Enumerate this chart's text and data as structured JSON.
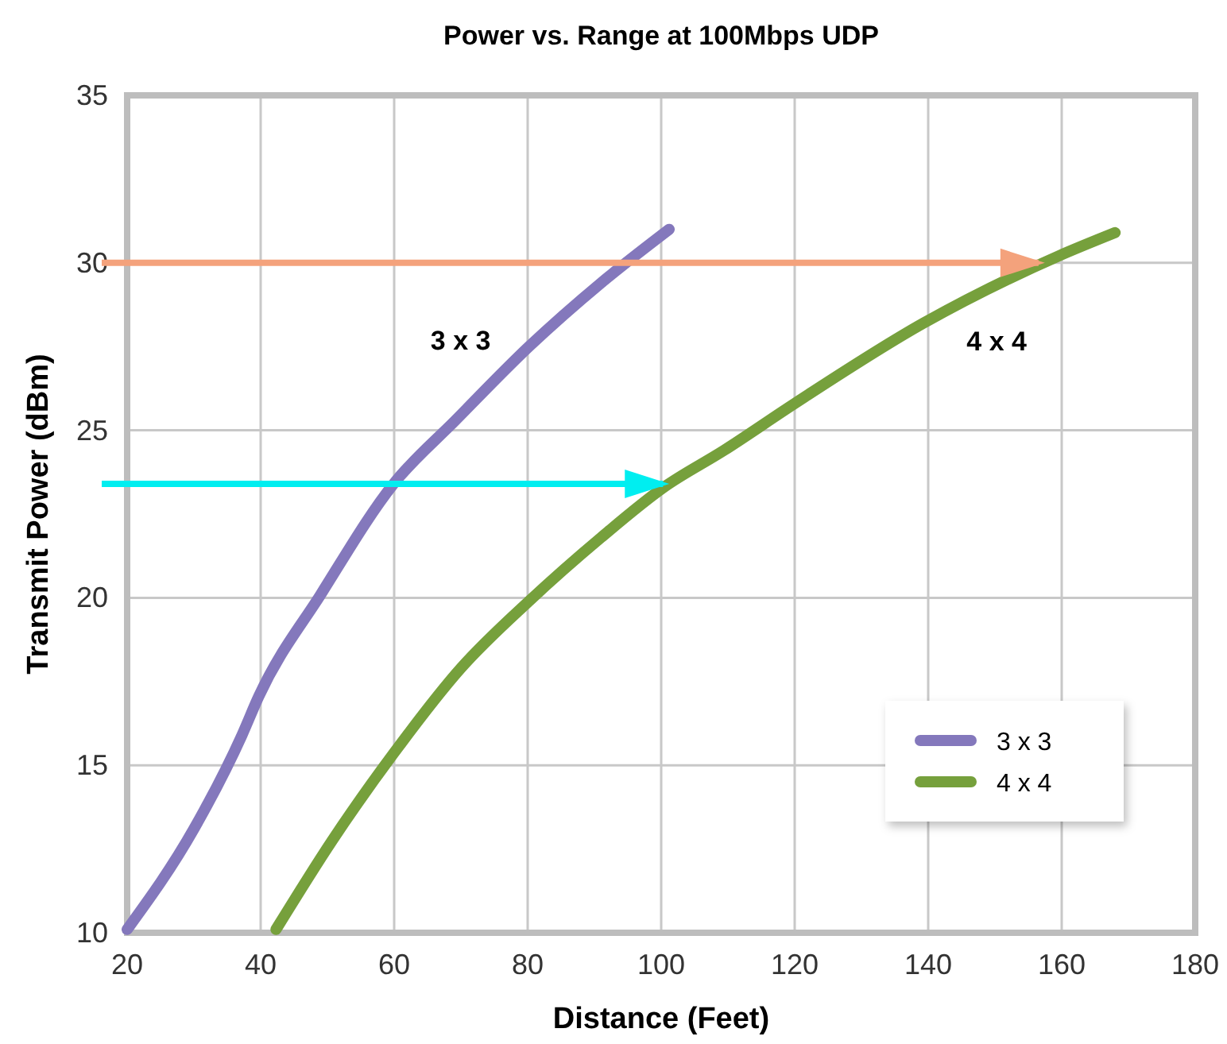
{
  "chart_data": {
    "type": "line",
    "title": "Power vs. Range at 100Mbps UDP",
    "xlabel": "Distance (Feet)",
    "ylabel": "Transmit Power (dBm)",
    "xlim": [
      20,
      180
    ],
    "xticks": [
      20,
      40,
      60,
      80,
      100,
      120,
      140,
      160,
      180
    ],
    "ylim": [
      10,
      35
    ],
    "yticks": [
      10,
      15,
      20,
      25,
      30,
      35
    ],
    "grid": true,
    "legend": "bottom right",
    "marker": "none",
    "line_style": "solid",
    "series": [
      {
        "name": "3 x 3",
        "color": "#8478bc",
        "x": [
          20,
          30,
          37.2,
          39.7,
          49,
          59.9,
          69.2,
          80.2,
          91,
          101.2
        ],
        "values": [
          10.1,
          13.1,
          15.9,
          17.05,
          20.1,
          23.4,
          25.3,
          27.5,
          29.4,
          31
        ]
      },
      {
        "name": "4 x 4",
        "color": "#76a03c",
        "x": [
          42.3,
          50.7,
          59.9,
          70,
          80.2,
          91,
          100.4,
          109.4,
          120,
          139.3,
          159.5,
          168
        ],
        "values": [
          10.1,
          12.75,
          15.35,
          17.9,
          19.9,
          21.8,
          23.3,
          24.4,
          25.8,
          28.2,
          30.2,
          30.9
        ]
      }
    ],
    "ref_lines": [
      {
        "axis": "y",
        "value": 30,
        "color": "#f4a27c"
      },
      {
        "axis": "y",
        "value": 23.4,
        "color": "#00eef0"
      }
    ],
    "annotations": [
      "3 x 3",
      "4 x 4"
    ]
  }
}
